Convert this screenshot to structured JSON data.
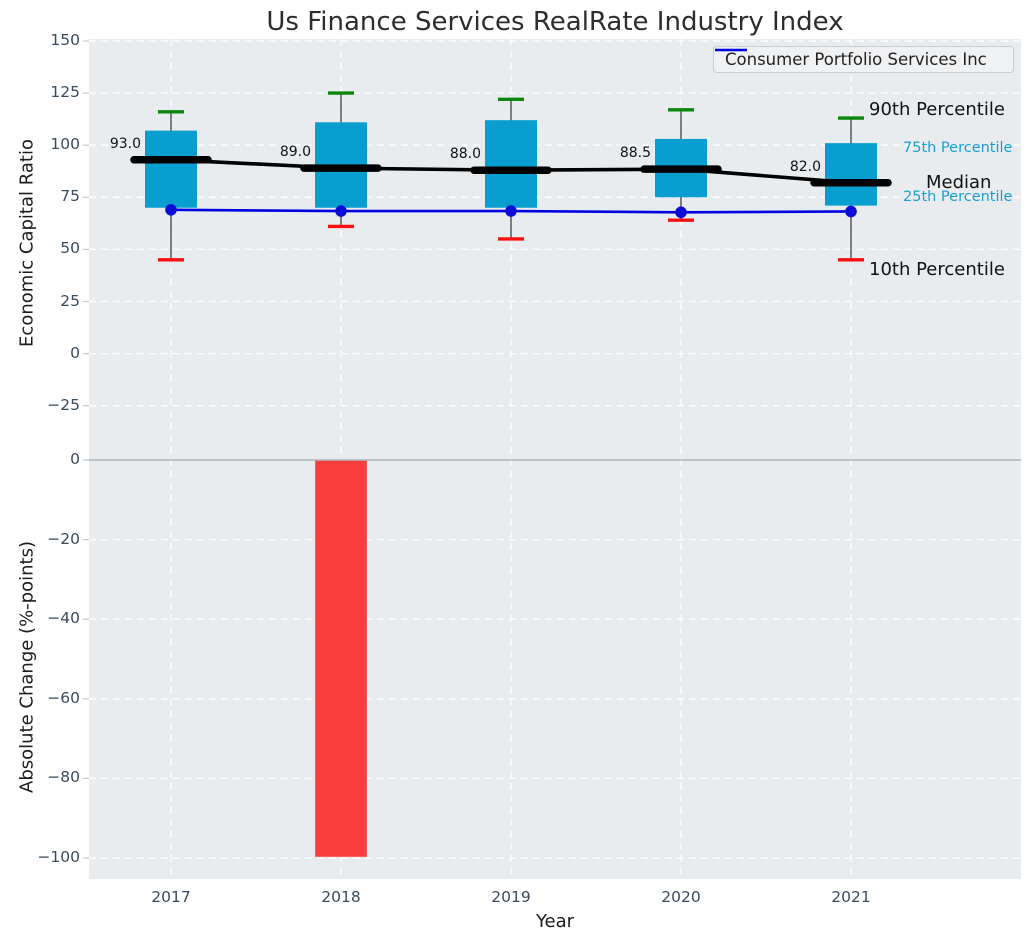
{
  "title": "Us Finance Services RealRate Industry Index",
  "legend": {
    "label": "Consumer Portfolio Services Inc",
    "line_color": "#0000e0"
  },
  "axes": {
    "top": {
      "ylabel": "Economic Capital Ratio",
      "yticks": [
        {
          "v": 150,
          "t": "150"
        },
        {
          "v": 125,
          "t": "125"
        },
        {
          "v": 100,
          "t": "100"
        },
        {
          "v": 75,
          "t": "75"
        },
        {
          "v": 50,
          "t": "50"
        },
        {
          "v": 25,
          "t": "25"
        },
        {
          "v": 0,
          "t": "0"
        },
        {
          "v": -25,
          "t": "−25"
        }
      ]
    },
    "bottom": {
      "ylabel": "Absolute Change (%-points)",
      "yticks": [
        {
          "v": 0,
          "t": "0"
        },
        {
          "v": -20,
          "t": "−20"
        },
        {
          "v": -40,
          "t": "−40"
        },
        {
          "v": -60,
          "t": "−60"
        },
        {
          "v": -80,
          "t": "−80"
        },
        {
          "v": -100,
          "t": "−100"
        }
      ]
    },
    "x": {
      "label": "Year",
      "ticks": [
        "2017",
        "2018",
        "2019",
        "2020",
        "2021"
      ]
    }
  },
  "annotations": {
    "p90": "90th Percentile",
    "p75": "75th Percentile",
    "median": "Median",
    "p25": "25th Percentile",
    "p10": "10th Percentile"
  },
  "colors": {
    "plot_bg": "#e9ecef",
    "grid": "#ffffff",
    "box_fill": "#089fd0",
    "cap_90": "#0b860b",
    "cap_10": "#fb0f0f",
    "median_line": "#000000",
    "company_line": "#0000e0",
    "change_bar": "#fa3d3d",
    "zero_line": "#b0b3b8",
    "whisker": "#4d4d4d",
    "tick_text": "#3a4b5e",
    "percentile_text": "#149fd4"
  },
  "chart_data": {
    "type": "box-percentile bands + line (top panel), bar (bottom panel)",
    "title": "Us Finance Services RealRate Industry Index",
    "xlabel": "Year",
    "categories": [
      "2017",
      "2018",
      "2019",
      "2020",
      "2021"
    ],
    "top_panel": {
      "ylabel": "Economic Capital Ratio",
      "ylim": [
        -42,
        151
      ],
      "grid": true,
      "series": [
        {
          "role": "p90",
          "name": "90th Percentile",
          "values": [
            116,
            125,
            122,
            117,
            113
          ],
          "color": "#0b860b"
        },
        {
          "role": "p75",
          "name": "75th Percentile",
          "values": [
            107,
            111,
            112,
            103,
            101
          ],
          "color": "#089fd0"
        },
        {
          "role": "median",
          "name": "Median",
          "values": [
            93.0,
            89.0,
            88.0,
            88.5,
            82.0
          ],
          "labels": [
            "93.0",
            "89.0",
            "88.0",
            "88.5",
            "82.0"
          ],
          "color": "#000000"
        },
        {
          "role": "p25",
          "name": "25th Percentile",
          "values": [
            70,
            70,
            70,
            75,
            71
          ],
          "color": "#089fd0"
        },
        {
          "role": "p10",
          "name": "10th Percentile",
          "values": [
            45,
            61,
            55,
            64,
            45
          ],
          "color": "#fb0f0f"
        },
        {
          "role": "company",
          "name": "Consumer Portfolio Services Inc",
          "values": [
            69,
            68.4,
            68.4,
            67.8,
            68.2
          ],
          "color": "#0000e0"
        }
      ]
    },
    "bottom_panel": {
      "ylabel": "Absolute Change (%-points)",
      "ylim": [
        -105,
        5
      ],
      "grid": true,
      "type": "bar",
      "bars": {
        "name": "Absolute Change",
        "values": [
          null,
          -100,
          null,
          null,
          null
        ],
        "color": "#fa3d3d"
      }
    },
    "legend_position": "upper right"
  }
}
